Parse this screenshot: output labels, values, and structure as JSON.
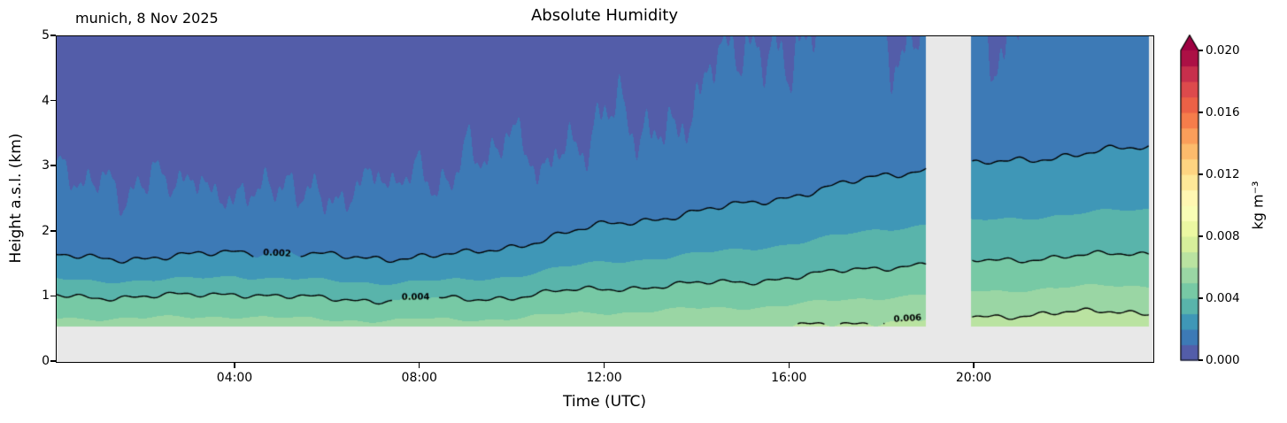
{
  "chart_data": {
    "type": "heatmap",
    "title": "Absolute Humidity",
    "annotation": "munich, 8 Nov 2025",
    "xlabel": "Time (UTC)",
    "ylabel": "Height a.s.l. (km)",
    "colorbar_label": "kg m⁻³",
    "colormap": "Spectral_r",
    "palette": [
      "#5e4fa2",
      "#3288bd",
      "#66c2a5",
      "#abdda4",
      "#e6f598",
      "#ffffbf",
      "#fee08b",
      "#fdae61",
      "#f46d43",
      "#d53e4f",
      "#9e0142"
    ],
    "no_data_color": "#e8e8e8",
    "value_range": [
      0.0,
      0.02
    ],
    "level_step": 0.001,
    "extend": "max",
    "ylim": [
      0,
      5
    ],
    "x_range_hours": [
      0.13,
      23.87
    ],
    "data_start_hour": 0.13,
    "data_end_hour": 23.78,
    "gap_hours": [
      18.95,
      19.93
    ],
    "data_floor_km": 0.55,
    "upper_halving_depth_factor": 1.7,
    "x_ticks": [
      {
        "hour": 4,
        "label": "04:00"
      },
      {
        "hour": 8,
        "label": "08:00"
      },
      {
        "hour": 12,
        "label": "12:00"
      },
      {
        "hour": 16,
        "label": "16:00"
      },
      {
        "hour": 20,
        "label": "20:00"
      }
    ],
    "y_ticks": [
      {
        "value": 0,
        "label": "0"
      },
      {
        "value": 1,
        "label": "1"
      },
      {
        "value": 2,
        "label": "2"
      },
      {
        "value": 3,
        "label": "3"
      },
      {
        "value": 4,
        "label": "4"
      },
      {
        "value": 5,
        "label": "5"
      }
    ],
    "colorbar_ticks": [
      {
        "value": 0.0,
        "label": "0.000"
      },
      {
        "value": 0.004,
        "label": "0.004"
      },
      {
        "value": 0.008,
        "label": "0.008"
      },
      {
        "value": 0.012,
        "label": "0.012"
      },
      {
        "value": 0.016,
        "label": "0.016"
      },
      {
        "value": 0.02,
        "label": "0.020"
      }
    ],
    "times_hours": [
      0,
      1,
      2,
      3,
      4,
      5,
      6,
      7,
      8,
      9,
      10,
      11,
      12,
      13,
      14,
      15,
      16,
      17,
      18,
      19,
      20,
      21,
      22,
      23,
      24
    ],
    "contours": [
      {
        "level": 0.002,
        "label": "0.002",
        "label_hour": 4.9,
        "heights_km": [
          1.62,
          1.6,
          1.6,
          1.62,
          1.7,
          1.68,
          1.62,
          1.6,
          1.62,
          1.65,
          1.78,
          1.95,
          2.1,
          2.2,
          2.3,
          2.42,
          2.55,
          2.7,
          2.85,
          2.98,
          3.02,
          3.1,
          3.18,
          3.25,
          3.3
        ]
      },
      {
        "level": 0.004,
        "label": "0.004",
        "label_hour": 7.9,
        "heights_km": [
          1.02,
          1.0,
          1.0,
          1.02,
          1.06,
          1.0,
          0.97,
          0.95,
          0.97,
          0.96,
          1.0,
          1.08,
          1.12,
          1.16,
          1.2,
          1.23,
          1.3,
          1.38,
          1.45,
          1.52,
          1.55,
          1.58,
          1.62,
          1.65,
          1.67
        ]
      },
      {
        "level": 0.006,
        "label": "0.006",
        "label_hour": 18.55,
        "heights_km": [
          0.4,
          0.4,
          0.4,
          0.41,
          0.42,
          0.4,
          0.39,
          0.38,
          0.39,
          0.39,
          0.41,
          0.44,
          0.46,
          0.48,
          0.5,
          0.51,
          0.54,
          0.57,
          0.62,
          0.66,
          0.7,
          0.72,
          0.75,
          0.78,
          0.76
        ]
      }
    ]
  }
}
